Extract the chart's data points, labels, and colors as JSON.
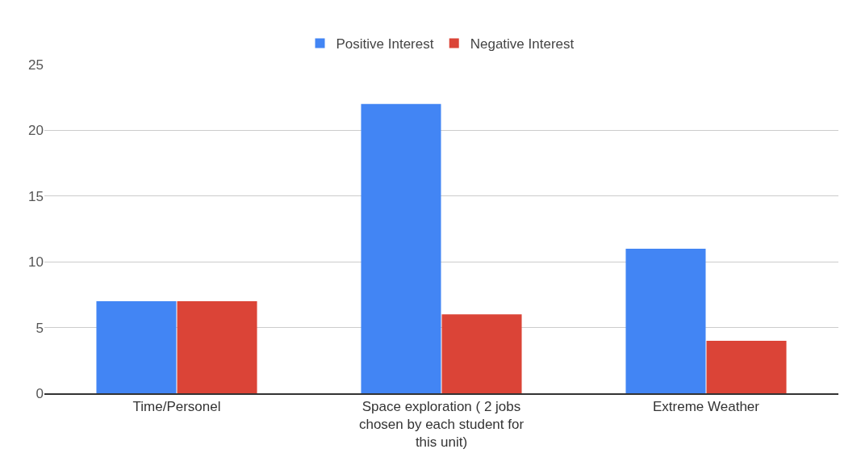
{
  "chart_data": {
    "type": "bar",
    "categories": [
      "Time/Personel",
      "Space exploration ( 2 jobs chosen by each student for this unit)",
      "Extreme Weather"
    ],
    "series": [
      {
        "name": "Positive Interest",
        "color": "#4285f4",
        "values": [
          7,
          22,
          11
        ]
      },
      {
        "name": "Negative Interest",
        "color": "#db4437",
        "values": [
          7,
          6,
          4
        ]
      }
    ],
    "ylim": [
      0,
      25
    ],
    "yticks": [
      0,
      5,
      10,
      15,
      20,
      25
    ],
    "grid": "y",
    "legend": "top"
  }
}
